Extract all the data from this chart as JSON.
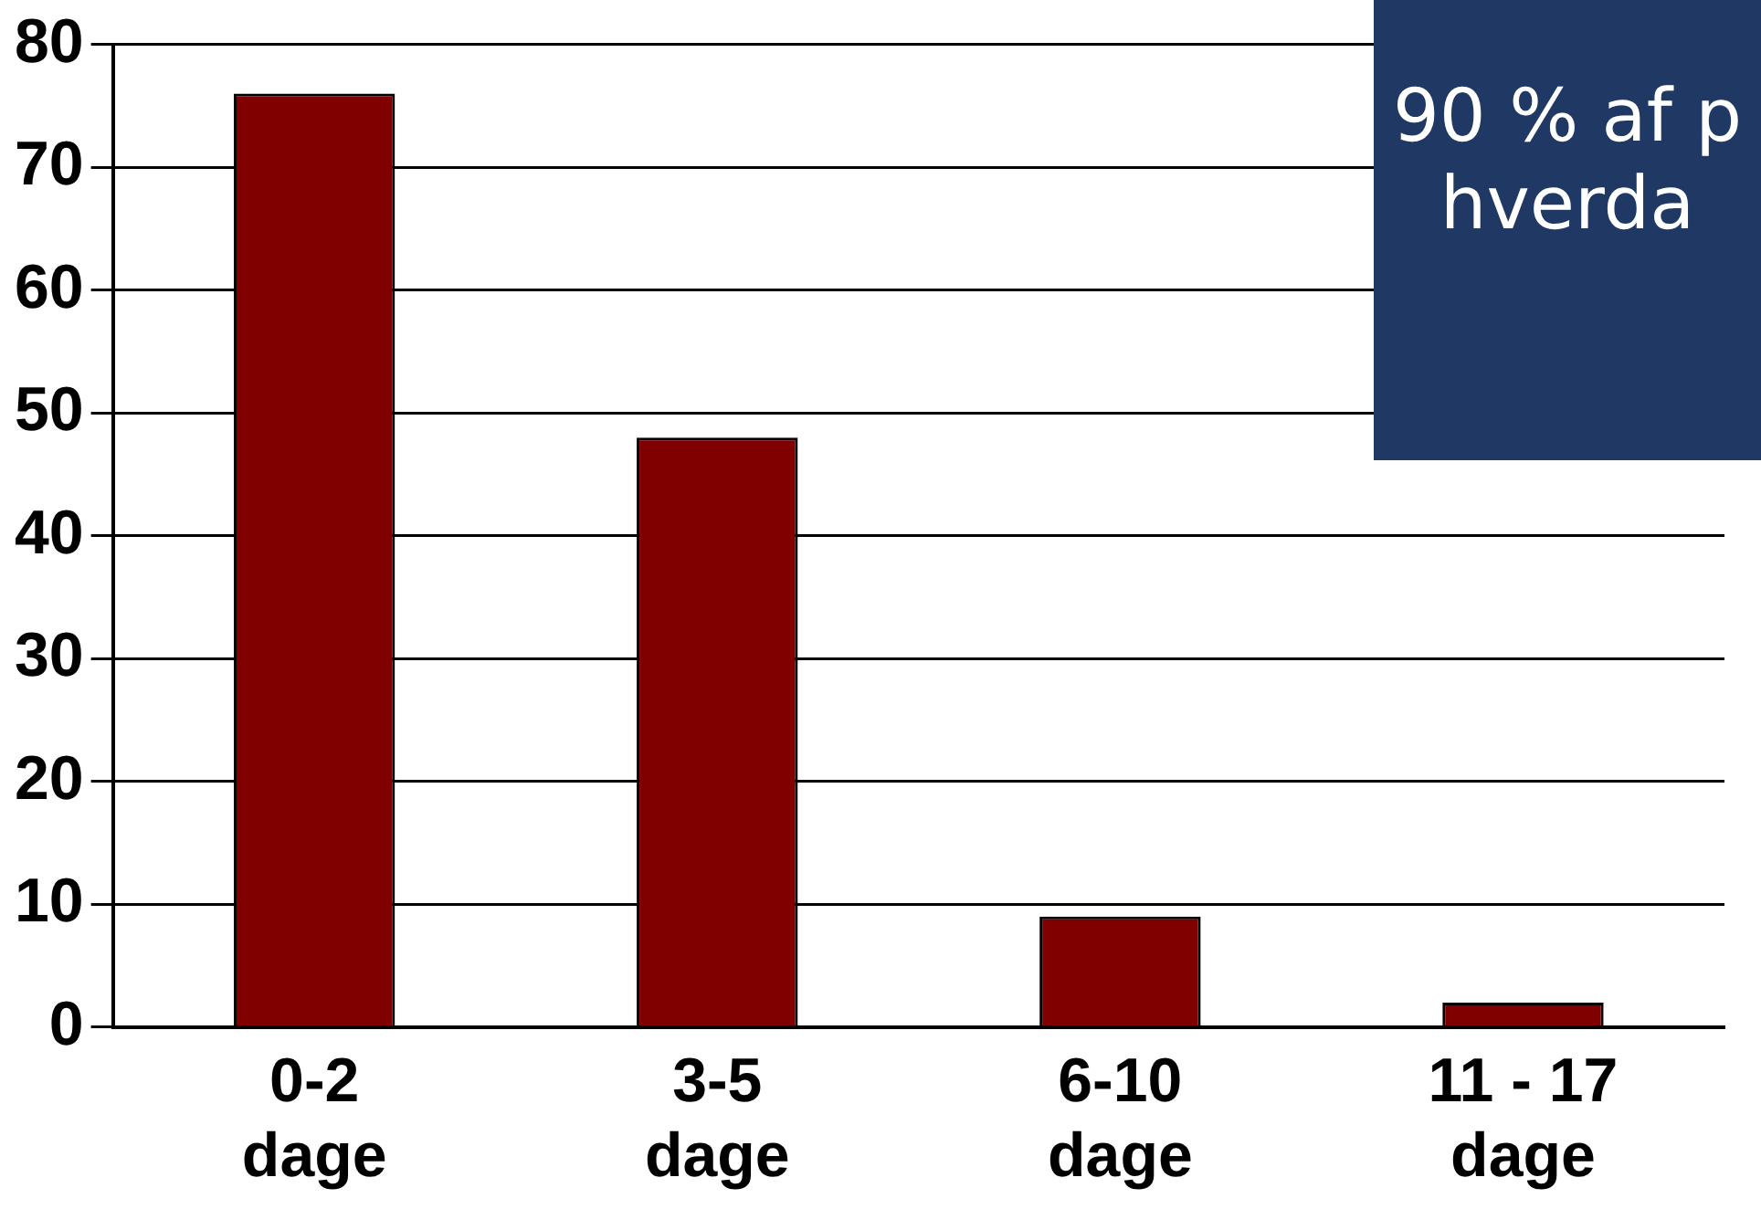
{
  "chart_data": {
    "type": "bar",
    "categories": [
      "0-2 dage",
      "3-5 dage",
      "6-10 dage",
      "11 - 17 dage"
    ],
    "values": [
      76,
      48,
      9,
      2
    ],
    "color": "#800000",
    "ylim": [
      0,
      80
    ],
    "yticks": [
      0,
      10,
      20,
      30,
      40,
      50,
      60,
      70,
      80
    ],
    "grid": "y",
    "legend": false,
    "annotations": [
      "90 % af p",
      "hverda"
    ]
  }
}
